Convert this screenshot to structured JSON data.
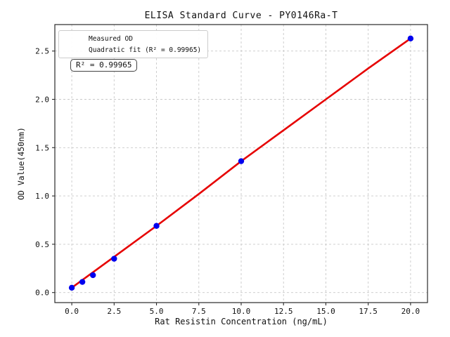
{
  "colors": {
    "background": "#ffffff",
    "scatter_blue": "#0000ee",
    "fit_red": "#e60000",
    "grid": "#c9c9c9",
    "spine": "#2a2a2a",
    "text": "#111111",
    "legend_border": "#cccccc",
    "annotation_border": "#444444"
  },
  "chart_data": {
    "type": "scatter",
    "title": "ELISA Standard Curve - PY0146Ra-T",
    "xlabel": "Rat Resistin Concentration (ng/mL)",
    "ylabel": "OD Value(450nm)",
    "xlim": [
      -1,
      21
    ],
    "ylim": [
      -0.104,
      2.774
    ],
    "xticks": [
      0.0,
      2.5,
      5.0,
      7.5,
      10.0,
      12.5,
      15.0,
      17.5,
      20.0
    ],
    "xtick_labels": [
      "0.0",
      "2.5",
      "5.0",
      "7.5",
      "10.0",
      "12.5",
      "15.0",
      "17.5",
      "20.0"
    ],
    "yticks": [
      0.0,
      0.5,
      1.0,
      1.5,
      2.0,
      2.5
    ],
    "ytick_labels": [
      "0.0",
      "0.5",
      "1.0",
      "1.5",
      "2.0",
      "2.5"
    ],
    "grid": true,
    "grid_style": "dashed",
    "legend_position": "upper-left",
    "r_squared": 0.99965,
    "annotation": "R² = 0.99965",
    "series": [
      {
        "name": "Measured OD",
        "type": "scatter",
        "color": "#0000ee",
        "x": [
          0,
          0.625,
          1.25,
          2.5,
          5,
          10,
          20
        ],
        "y": [
          0.05,
          0.11,
          0.18,
          0.35,
          0.69,
          1.36,
          2.63
        ]
      },
      {
        "name": "Quadratic fit (R² = 0.99965)",
        "type": "line",
        "color": "#e60000",
        "x": [
          0,
          2.5,
          5,
          7.5,
          10,
          12.5,
          15,
          17.5,
          20
        ],
        "y": [
          0.05,
          0.37,
          0.69,
          1.02,
          1.36,
          1.68,
          2.0,
          2.32,
          2.63
        ]
      }
    ]
  }
}
